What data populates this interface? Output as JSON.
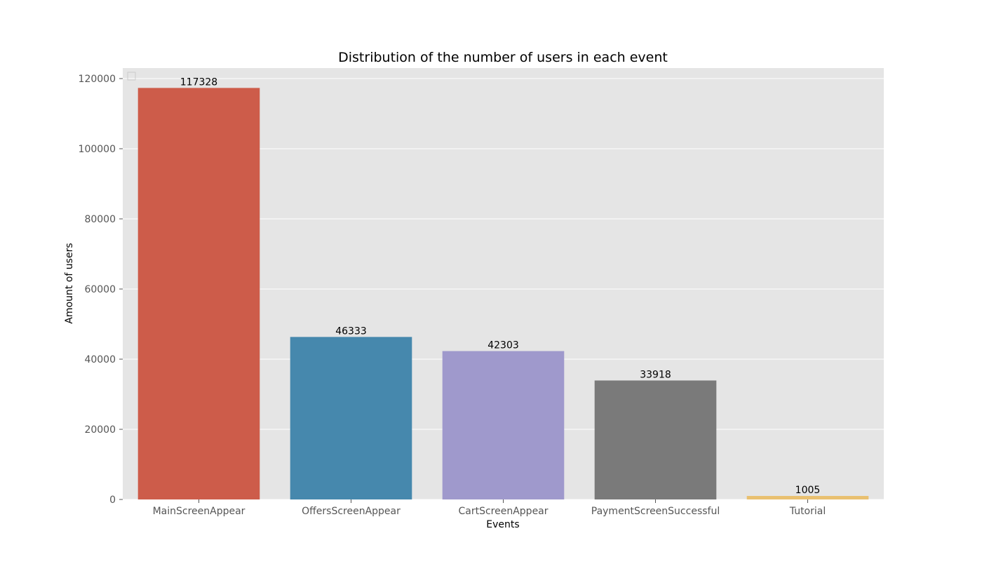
{
  "chart_data": {
    "type": "bar",
    "title": "Distribution of the number of users in each event",
    "xlabel": "Events",
    "ylabel": "Amount of users",
    "categories": [
      "MainScreenAppear",
      "OffersScreenAppear",
      "CartScreenAppear",
      "PaymentScreenSuccessful",
      "Tutorial"
    ],
    "values": [
      117328,
      46333,
      42303,
      33918,
      1005
    ],
    "data_labels": [
      "117328",
      "46333",
      "42303",
      "33918",
      "1005"
    ],
    "colors": [
      "#cd5c4a",
      "#4688ad",
      "#9f99cc",
      "#7a7a7a",
      "#e9c070"
    ],
    "ylim": [
      0,
      123000
    ],
    "yticks": [
      0,
      20000,
      40000,
      60000,
      80000,
      100000,
      120000
    ],
    "ytick_labels": [
      "0",
      "20000",
      "40000",
      "60000",
      "80000",
      "100000",
      "120000"
    ],
    "grid": true,
    "legend": "top-left (empty)",
    "style": {
      "plot_background": "#e5e5e5",
      "grid_color": "#ffffff"
    }
  }
}
